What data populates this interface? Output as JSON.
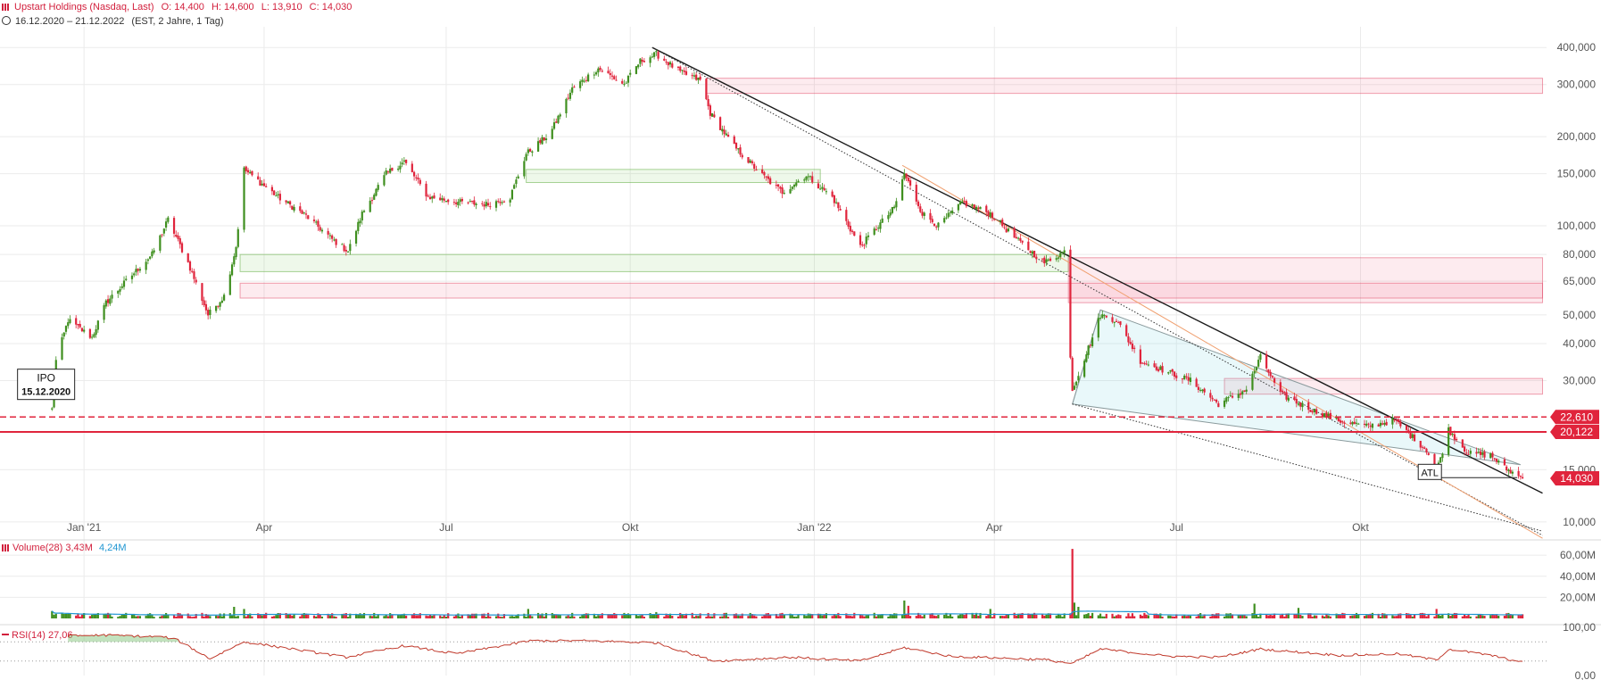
{
  "header": {
    "title": "Upstart Holdings (Nasdaq, Last)",
    "open": "O: 14,400",
    "high": "H: 14,600",
    "low": "L: 13,910",
    "close": "C: 14,030",
    "range": "16.12.2020 – 21.12.2022",
    "meta": "(EST, 2 Jahre, 1 Tag)"
  },
  "colors": {
    "up": "#3f8f1f",
    "down": "#e0243c",
    "accent": "#d21f3c",
    "volume_ma": "#1f96d2",
    "grid": "#ebebeb"
  },
  "chart_data": [
    {
      "type": "candlestick",
      "y_scale": "log",
      "ylim": [
        9000,
        470000
      ],
      "grid": true,
      "x_ticks": [
        "Jan '21",
        "Apr",
        "Jul",
        "Okt",
        "Jan '22",
        "Apr",
        "Jul",
        "Okt"
      ],
      "x_tick_dates": [
        "2021-01-01",
        "2021-04-01",
        "2021-07-01",
        "2021-10-01",
        "2022-01-01",
        "2022-04-01",
        "2022-07-01",
        "2022-10-01"
      ],
      "y_ticks": [
        {
          "value": 400000,
          "label": "400,000"
        },
        {
          "value": 300000,
          "label": "300,000"
        },
        {
          "value": 200000,
          "label": "200,000"
        },
        {
          "value": 150000,
          "label": "150,000"
        },
        {
          "value": 100000,
          "label": "100,000"
        },
        {
          "value": 80000,
          "label": "80,000"
        },
        {
          "value": 65000,
          "label": "65,000"
        },
        {
          "value": 50000,
          "label": "50,000"
        },
        {
          "value": 40000,
          "label": "40,000"
        },
        {
          "value": 30000,
          "label": "30,000"
        },
        {
          "value": 15000,
          "label": "15,000"
        },
        {
          "value": 10000,
          "label": "10,000"
        }
      ],
      "price_markers": [
        {
          "value": 22610,
          "label": "22,610",
          "style": "dashed"
        },
        {
          "value": 20122,
          "label": "20,122",
          "style": "solid"
        },
        {
          "value": 14030,
          "label": "14,030",
          "style": "last"
        }
      ],
      "path_points": [
        [
          "2020-12-16",
          24000
        ],
        [
          "2020-12-18",
          35000
        ],
        [
          "2020-12-24",
          48000
        ],
        [
          "2021-01-05",
          42000
        ],
        [
          "2021-01-12",
          55000
        ],
        [
          "2021-01-22",
          65000
        ],
        [
          "2021-02-04",
          80000
        ],
        [
          "2021-02-12",
          105000
        ],
        [
          "2021-02-22",
          75000
        ],
        [
          "2021-03-04",
          50000
        ],
        [
          "2021-03-12",
          58000
        ],
        [
          "2021-03-18",
          85000
        ],
        [
          "2021-03-22",
          155000
        ],
        [
          "2021-04-08",
          125000
        ],
        [
          "2021-04-22",
          108000
        ],
        [
          "2021-05-05",
          90000
        ],
        [
          "2021-05-13",
          82000
        ],
        [
          "2021-05-20",
          110000
        ],
        [
          "2021-06-01",
          150000
        ],
        [
          "2021-06-10",
          165000
        ],
        [
          "2021-06-22",
          125000
        ],
        [
          "2021-07-08",
          120000
        ],
        [
          "2021-07-22",
          118000
        ],
        [
          "2021-08-02",
          125000
        ],
        [
          "2021-08-10",
          175000
        ],
        [
          "2021-08-22",
          205000
        ],
        [
          "2021-09-02",
          290000
        ],
        [
          "2021-09-15",
          340000
        ],
        [
          "2021-09-28",
          300000
        ],
        [
          "2021-10-06",
          360000
        ],
        [
          "2021-10-14",
          380000
        ],
        [
          "2021-10-26",
          330000
        ],
        [
          "2021-11-05",
          310000
        ],
        [
          "2021-11-10",
          240000
        ],
        [
          "2021-11-22",
          185000
        ],
        [
          "2021-12-06",
          148000
        ],
        [
          "2021-12-16",
          130000
        ],
        [
          "2021-12-28",
          148000
        ],
        [
          "2022-01-10",
          125000
        ],
        [
          "2022-01-24",
          85000
        ],
        [
          "2022-02-02",
          100000
        ],
        [
          "2022-02-10",
          115000
        ],
        [
          "2022-02-15",
          150000
        ],
        [
          "2022-02-24",
          110000
        ],
        [
          "2022-03-04",
          100000
        ],
        [
          "2022-03-16",
          120000
        ],
        [
          "2022-03-30",
          110000
        ],
        [
          "2022-04-12",
          90000
        ],
        [
          "2022-04-26",
          75000
        ],
        [
          "2022-05-06",
          82000
        ],
        [
          "2022-05-10",
          28000
        ],
        [
          "2022-05-20",
          42000
        ],
        [
          "2022-05-24",
          50000
        ],
        [
          "2022-06-01",
          48000
        ],
        [
          "2022-06-13",
          35000
        ],
        [
          "2022-06-27",
          32000
        ],
        [
          "2022-07-08",
          30000
        ],
        [
          "2022-07-22",
          25000
        ],
        [
          "2022-08-05",
          28000
        ],
        [
          "2022-08-12",
          36000
        ],
        [
          "2022-08-22",
          27000
        ],
        [
          "2022-09-06",
          24000
        ],
        [
          "2022-09-20",
          22000
        ],
        [
          "2022-10-04",
          21000
        ],
        [
          "2022-10-18",
          22000
        ],
        [
          "2022-11-03",
          17500
        ],
        [
          "2022-11-08",
          14800
        ],
        [
          "2022-11-14",
          20500
        ],
        [
          "2022-11-24",
          17000
        ],
        [
          "2022-12-05",
          16800
        ],
        [
          "2022-12-12",
          15200
        ],
        [
          "2022-12-21",
          14030
        ]
      ],
      "zones": [
        {
          "from": "2021-11-08",
          "to": "2022-12-31",
          "y1": 280000,
          "y2": 315000,
          "kind": "supply"
        },
        {
          "from": "2021-08-10",
          "to": "2022-01-04",
          "y1": 140000,
          "y2": 155000,
          "kind": "demand"
        },
        {
          "from": "2021-03-20",
          "to": "2022-05-08",
          "y1": 70000,
          "y2": 80000,
          "kind": "demand"
        },
        {
          "from": "2021-03-20",
          "to": "2022-12-31",
          "y1": 57000,
          "y2": 64000,
          "kind": "supply"
        },
        {
          "from": "2022-05-08",
          "to": "2022-12-31",
          "y1": 55000,
          "y2": 78000,
          "kind": "supply"
        },
        {
          "from": "2022-07-25",
          "to": "2022-12-31",
          "y1": 27000,
          "y2": 30500,
          "kind": "supply"
        }
      ],
      "trendlines": [
        {
          "from": [
            "2021-10-12",
            400000
          ],
          "to": [
            "2022-12-31",
            12500
          ],
          "style": "solid",
          "color": "#1a1a1a"
        },
        {
          "from": [
            "2021-10-12",
            400000
          ],
          "to": [
            "2022-12-31",
            9000
          ],
          "style": "dotted",
          "color": "#333333"
        },
        {
          "from": [
            "2022-02-14",
            160000
          ],
          "to": [
            "2022-12-31",
            8800
          ],
          "style": "solid",
          "color": "#f0a070"
        }
      ],
      "wedge": {
        "apex": [
          "2022-12-20",
          15600
        ],
        "upper": [
          "2022-05-24",
          52000
        ],
        "lower": [
          "2022-05-10",
          25000
        ]
      },
      "annotations": [
        {
          "text": "IPO",
          "sub": "15.12.2020",
          "date": "2020-12-01",
          "value": 27000
        },
        {
          "text": "ATL",
          "date": "2022-11-06",
          "value": 14700
        }
      ]
    },
    {
      "type": "bar",
      "name": "Volume(28)",
      "legend_values": [
        "3,43M",
        "4,24M"
      ],
      "ylim": [
        0,
        72000000
      ],
      "y_ticks": [
        {
          "value": 60000000,
          "label": "60,00M"
        },
        {
          "value": 40000000,
          "label": "40,00M"
        },
        {
          "value": 20000000,
          "label": "20,00M"
        }
      ],
      "spikes": [
        [
          "2020-12-16",
          7000000
        ],
        [
          "2021-03-17",
          11000000
        ],
        [
          "2021-03-22",
          9000000
        ],
        [
          "2021-08-11",
          9000000
        ],
        [
          "2021-10-14",
          6000000
        ],
        [
          "2022-02-15",
          17000000
        ],
        [
          "2022-02-17",
          12000000
        ],
        [
          "2022-03-30",
          9000000
        ],
        [
          "2022-05-10",
          66000000
        ],
        [
          "2022-05-11",
          15000000
        ],
        [
          "2022-05-13",
          11000000
        ],
        [
          "2022-08-09",
          14000000
        ],
        [
          "2022-08-31",
          10000000
        ],
        [
          "2022-11-08",
          9000000
        ]
      ]
    },
    {
      "type": "line",
      "name": "RSI(14)",
      "legend_values": [
        "27,06"
      ],
      "ylim": [
        0,
        100
      ],
      "y_ticks": [
        {
          "value": 100,
          "label": "100,00"
        },
        {
          "value": 0,
          "label": "0,00"
        }
      ],
      "points": [
        [
          "2020-12-24",
          82
        ],
        [
          "2021-01-10",
          84
        ],
        [
          "2021-02-10",
          80
        ],
        [
          "2021-02-16",
          75
        ],
        [
          "2021-03-05",
          35
        ],
        [
          "2021-03-22",
          70
        ],
        [
          "2021-04-20",
          52
        ],
        [
          "2021-05-12",
          38
        ],
        [
          "2021-06-10",
          62
        ],
        [
          "2021-07-06",
          45
        ],
        [
          "2021-08-12",
          72
        ],
        [
          "2021-09-10",
          72
        ],
        [
          "2021-10-14",
          68
        ],
        [
          "2021-11-12",
          30
        ],
        [
          "2021-12-20",
          38
        ],
        [
          "2022-01-24",
          30
        ],
        [
          "2022-02-15",
          58
        ],
        [
          "2022-03-10",
          40
        ],
        [
          "2022-04-26",
          33
        ],
        [
          "2022-05-10",
          25
        ],
        [
          "2022-05-24",
          55
        ],
        [
          "2022-06-27",
          40
        ],
        [
          "2022-07-22",
          38
        ],
        [
          "2022-08-12",
          55
        ],
        [
          "2022-09-20",
          42
        ],
        [
          "2022-10-20",
          45
        ],
        [
          "2022-11-08",
          32
        ],
        [
          "2022-11-14",
          55
        ],
        [
          "2022-12-05",
          42
        ],
        [
          "2022-12-21",
          27
        ]
      ]
    }
  ]
}
